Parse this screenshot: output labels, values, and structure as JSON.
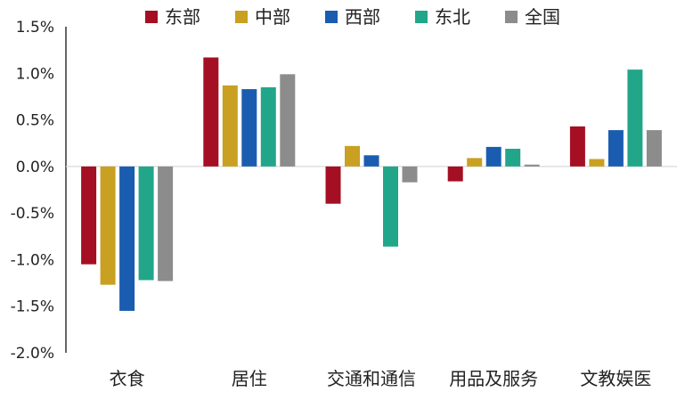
{
  "chart_data": {
    "type": "bar",
    "categories": [
      "衣食",
      "居住",
      "交通和通信",
      "用品及服务",
      "文教娱医"
    ],
    "series": [
      {
        "name": "东部",
        "color": "#A50F23",
        "values": [
          -1.05,
          1.17,
          -0.4,
          -0.16,
          0.43
        ]
      },
      {
        "name": "中部",
        "color": "#C9A021",
        "values": [
          -1.27,
          0.87,
          0.22,
          0.09,
          0.08
        ]
      },
      {
        "name": "西部",
        "color": "#1A5DB0",
        "values": [
          -1.55,
          0.83,
          0.12,
          0.21,
          0.39
        ]
      },
      {
        "name": "东北",
        "color": "#22A68A",
        "values": [
          -1.22,
          0.85,
          -0.86,
          0.19,
          1.04
        ]
      },
      {
        "name": "全国",
        "color": "#8C8C8C",
        "values": [
          -1.23,
          0.99,
          -0.17,
          0.02,
          0.39
        ]
      }
    ],
    "y_ticks": [
      "1.5%",
      "1.0%",
      "0.5%",
      "0.0%",
      "-0.5%",
      "-1.0%",
      "-1.5%",
      "-2.0%"
    ],
    "ylim": [
      -2.0,
      1.5
    ],
    "legend_position": "top",
    "grid": false
  }
}
